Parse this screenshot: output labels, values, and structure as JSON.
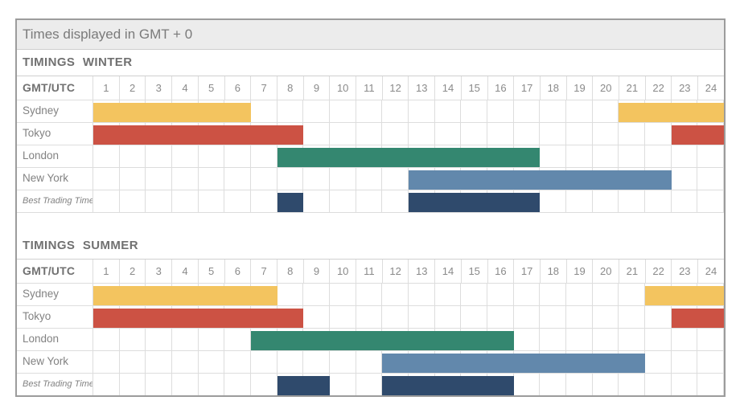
{
  "title_bar": "Times displayed in GMT + 0",
  "corner_label": "GMT/UTC",
  "colors": {
    "sydney": "#F3C45F",
    "tokyo": "#CC5244",
    "london": "#348770",
    "new_york": "#6288AC",
    "best_trading": "#2F4A6C",
    "title_bg": "#ECECEC",
    "outer_border": "#9C9C9C",
    "grid_line": "#DDDDDD",
    "text_gray": "#828282"
  },
  "chart_data": {
    "type": "gantt",
    "title": "Times displayed in GMT + 0",
    "xlabel": "GMT/UTC",
    "x_ticks": [
      1,
      2,
      3,
      4,
      5,
      6,
      7,
      8,
      9,
      10,
      11,
      12,
      13,
      14,
      15,
      16,
      17,
      18,
      19,
      20,
      21,
      22,
      23,
      24
    ],
    "x_range": [
      0,
      24
    ],
    "grid": true,
    "legend": false,
    "sections": [
      {
        "label": "TIMINGS WINTER",
        "rows": [
          {
            "name": "Sydney",
            "color": "#F3C45F",
            "italic": false,
            "segments": [
              {
                "start_col": 1,
                "end_col": 6
              },
              {
                "start_col": 21,
                "end_col": 24
              }
            ]
          },
          {
            "name": "Tokyo",
            "color": "#CC5244",
            "italic": false,
            "segments": [
              {
                "start_col": 1,
                "end_col": 8
              },
              {
                "start_col": 23,
                "end_col": 24
              }
            ]
          },
          {
            "name": "London",
            "color": "#348770",
            "italic": false,
            "segments": [
              {
                "start_col": 8,
                "end_col": 17
              }
            ]
          },
          {
            "name": "New York",
            "color": "#6288AC",
            "italic": false,
            "segments": [
              {
                "start_col": 13,
                "end_col": 22
              }
            ]
          },
          {
            "name": "Best Trading Time",
            "color": "#2F4A6C",
            "italic": true,
            "segments": [
              {
                "start_col": 8,
                "end_col": 8
              },
              {
                "start_col": 13,
                "end_col": 17
              }
            ]
          }
        ]
      },
      {
        "label": "TIMINGS SUMMER",
        "rows": [
          {
            "name": "Sydney",
            "color": "#F3C45F",
            "italic": false,
            "segments": [
              {
                "start_col": 1,
                "end_col": 7
              },
              {
                "start_col": 22,
                "end_col": 24
              }
            ]
          },
          {
            "name": "Tokyo",
            "color": "#CC5244",
            "italic": false,
            "segments": [
              {
                "start_col": 1,
                "end_col": 8
              },
              {
                "start_col": 23,
                "end_col": 24
              }
            ]
          },
          {
            "name": "London",
            "color": "#348770",
            "italic": false,
            "segments": [
              {
                "start_col": 7,
                "end_col": 16
              }
            ]
          },
          {
            "name": "New York",
            "color": "#6288AC",
            "italic": false,
            "segments": [
              {
                "start_col": 12,
                "end_col": 21
              }
            ]
          },
          {
            "name": "Best Trading Time",
            "color": "#2F4A6C",
            "italic": true,
            "segments": [
              {
                "start_col": 8,
                "end_col": 9
              },
              {
                "start_col": 12,
                "end_col": 16
              }
            ]
          }
        ]
      }
    ]
  }
}
